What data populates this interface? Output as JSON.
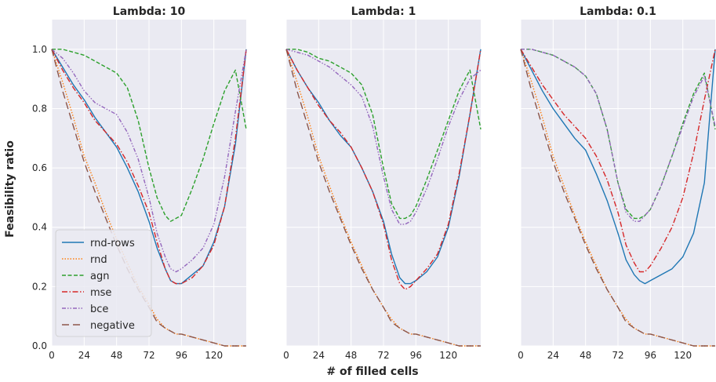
{
  "figure": {
    "ylabel": "Feasibility ratio",
    "xlabel": "# of filled cells"
  },
  "colors": {
    "rnd-rows": "#1f77b4",
    "rnd": "#ff7f0e",
    "agn": "#2ca02c",
    "mse": "#d62728",
    "bce": "#9467bd",
    "negative": "#8c564b",
    "panel_bg": "#eaeaf2",
    "grid": "#ffffff"
  },
  "legend": {
    "position": "lower-left",
    "entries": [
      "rnd-rows",
      "rnd",
      "agn",
      "mse",
      "bce",
      "negative"
    ]
  },
  "chart_data": [
    {
      "type": "line",
      "title": "Lambda: 10",
      "xlim": [
        0,
        144
      ],
      "ylim": [
        0,
        1.1
      ],
      "xticks": [
        0,
        24,
        48,
        72,
        96,
        120
      ],
      "yticks": [
        0.0,
        0.2,
        0.4,
        0.6,
        0.8,
        1.0
      ],
      "grid": true,
      "x": [
        0,
        8,
        16,
        24,
        32,
        40,
        48,
        56,
        64,
        72,
        78,
        84,
        88,
        92,
        96,
        104,
        112,
        120,
        128,
        136,
        144
      ],
      "series": [
        {
          "name": "rnd-rows",
          "values": [
            1.0,
            0.94,
            0.88,
            0.83,
            0.77,
            0.72,
            0.67,
            0.6,
            0.52,
            0.42,
            0.33,
            0.26,
            0.22,
            0.21,
            0.21,
            0.24,
            0.27,
            0.35,
            0.47,
            0.68,
            1.0
          ]
        },
        {
          "name": "rnd",
          "values": [
            1.0,
            0.89,
            0.77,
            0.64,
            0.55,
            0.45,
            0.36,
            0.28,
            0.2,
            0.14,
            0.09,
            0.06,
            0.05,
            0.04,
            0.04,
            0.03,
            0.02,
            0.01,
            0.0,
            0.0,
            0.0
          ]
        },
        {
          "name": "agn",
          "values": [
            1.0,
            1.0,
            0.99,
            0.98,
            0.96,
            0.94,
            0.92,
            0.87,
            0.76,
            0.6,
            0.5,
            0.44,
            0.42,
            0.43,
            0.44,
            0.53,
            0.63,
            0.75,
            0.86,
            0.93,
            0.73
          ]
        },
        {
          "name": "mse",
          "values": [
            1.0,
            0.93,
            0.87,
            0.82,
            0.76,
            0.72,
            0.68,
            0.62,
            0.54,
            0.45,
            0.35,
            0.26,
            0.22,
            0.21,
            0.21,
            0.23,
            0.27,
            0.34,
            0.47,
            0.7,
            1.0
          ]
        },
        {
          "name": "bce",
          "values": [
            1.0,
            0.97,
            0.92,
            0.86,
            0.82,
            0.8,
            0.78,
            0.72,
            0.63,
            0.5,
            0.38,
            0.3,
            0.26,
            0.25,
            0.26,
            0.29,
            0.33,
            0.41,
            0.57,
            0.79,
            1.0
          ]
        },
        {
          "name": "negative",
          "values": [
            1.0,
            0.86,
            0.74,
            0.62,
            0.52,
            0.43,
            0.34,
            0.26,
            0.19,
            0.13,
            0.08,
            0.06,
            0.05,
            0.04,
            0.04,
            0.03,
            0.02,
            0.01,
            0.0,
            0.0,
            0.0
          ]
        }
      ]
    },
    {
      "type": "line",
      "title": "Lambda: 1",
      "xlim": [
        0,
        144
      ],
      "ylim": [
        0,
        1.1
      ],
      "xticks": [
        0,
        24,
        48,
        72,
        96,
        120
      ],
      "yticks": [
        0.0,
        0.2,
        0.4,
        0.6,
        0.8,
        1.0
      ],
      "grid": true,
      "x": [
        0,
        8,
        16,
        24,
        32,
        40,
        48,
        56,
        64,
        72,
        78,
        84,
        88,
        92,
        96,
        104,
        112,
        120,
        128,
        136,
        144
      ],
      "series": [
        {
          "name": "rnd-rows",
          "values": [
            1.0,
            0.93,
            0.87,
            0.82,
            0.76,
            0.71,
            0.67,
            0.6,
            0.52,
            0.42,
            0.31,
            0.23,
            0.21,
            0.21,
            0.22,
            0.25,
            0.3,
            0.4,
            0.57,
            0.78,
            1.0
          ]
        },
        {
          "name": "rnd",
          "values": [
            1.0,
            0.89,
            0.77,
            0.64,
            0.54,
            0.44,
            0.35,
            0.27,
            0.19,
            0.13,
            0.09,
            0.06,
            0.05,
            0.04,
            0.04,
            0.03,
            0.02,
            0.01,
            0.0,
            0.0,
            0.0
          ]
        },
        {
          "name": "agn",
          "values": [
            1.0,
            1.0,
            0.99,
            0.97,
            0.96,
            0.94,
            0.92,
            0.88,
            0.78,
            0.6,
            0.48,
            0.43,
            0.43,
            0.44,
            0.47,
            0.56,
            0.66,
            0.76,
            0.86,
            0.93,
            0.73
          ]
        },
        {
          "name": "mse",
          "values": [
            1.0,
            0.93,
            0.87,
            0.81,
            0.76,
            0.72,
            0.67,
            0.6,
            0.52,
            0.41,
            0.29,
            0.21,
            0.19,
            0.2,
            0.22,
            0.26,
            0.31,
            0.41,
            0.58,
            0.78,
            1.0
          ]
        },
        {
          "name": "bce",
          "values": [
            1.0,
            0.99,
            0.98,
            0.96,
            0.94,
            0.91,
            0.88,
            0.84,
            0.74,
            0.57,
            0.46,
            0.41,
            0.41,
            0.42,
            0.45,
            0.53,
            0.63,
            0.74,
            0.83,
            0.9,
            0.93
          ]
        },
        {
          "name": "negative",
          "values": [
            1.0,
            0.86,
            0.74,
            0.62,
            0.52,
            0.43,
            0.34,
            0.26,
            0.19,
            0.13,
            0.08,
            0.06,
            0.05,
            0.04,
            0.04,
            0.03,
            0.02,
            0.01,
            0.0,
            0.0,
            0.0
          ]
        }
      ]
    },
    {
      "type": "line",
      "title": "Lambda: 0.1",
      "xlim": [
        0,
        144
      ],
      "ylim": [
        0,
        1.1
      ],
      "xticks": [
        0,
        24,
        48,
        72,
        96,
        120
      ],
      "yticks": [
        0.0,
        0.2,
        0.4,
        0.6,
        0.8,
        1.0
      ],
      "grid": true,
      "x": [
        0,
        8,
        16,
        24,
        32,
        40,
        48,
        56,
        64,
        72,
        78,
        84,
        88,
        92,
        96,
        104,
        112,
        120,
        128,
        136,
        144
      ],
      "series": [
        {
          "name": "rnd-rows",
          "values": [
            1.0,
            0.93,
            0.86,
            0.8,
            0.75,
            0.7,
            0.66,
            0.58,
            0.49,
            0.38,
            0.29,
            0.24,
            0.22,
            0.21,
            0.22,
            0.24,
            0.26,
            0.3,
            0.38,
            0.55,
            1.0
          ]
        },
        {
          "name": "rnd",
          "values": [
            1.0,
            0.89,
            0.77,
            0.64,
            0.54,
            0.44,
            0.35,
            0.27,
            0.19,
            0.13,
            0.09,
            0.06,
            0.05,
            0.04,
            0.04,
            0.03,
            0.02,
            0.01,
            0.0,
            0.0,
            0.0
          ]
        },
        {
          "name": "agn",
          "values": [
            1.0,
            1.0,
            0.99,
            0.98,
            0.96,
            0.94,
            0.91,
            0.85,
            0.73,
            0.55,
            0.46,
            0.43,
            0.43,
            0.44,
            0.46,
            0.54,
            0.64,
            0.75,
            0.85,
            0.92,
            0.73
          ]
        },
        {
          "name": "mse",
          "values": [
            1.0,
            0.94,
            0.88,
            0.83,
            0.78,
            0.74,
            0.7,
            0.64,
            0.56,
            0.45,
            0.34,
            0.28,
            0.25,
            0.25,
            0.27,
            0.33,
            0.4,
            0.5,
            0.65,
            0.83,
            1.0
          ]
        },
        {
          "name": "bce",
          "values": [
            1.0,
            1.0,
            0.99,
            0.98,
            0.96,
            0.94,
            0.91,
            0.85,
            0.73,
            0.55,
            0.45,
            0.42,
            0.42,
            0.44,
            0.46,
            0.54,
            0.64,
            0.74,
            0.84,
            0.91,
            0.74
          ]
        },
        {
          "name": "negative",
          "values": [
            1.0,
            0.86,
            0.74,
            0.62,
            0.52,
            0.43,
            0.34,
            0.26,
            0.19,
            0.13,
            0.08,
            0.06,
            0.05,
            0.04,
            0.04,
            0.03,
            0.02,
            0.01,
            0.0,
            0.0,
            0.0
          ]
        }
      ]
    }
  ]
}
